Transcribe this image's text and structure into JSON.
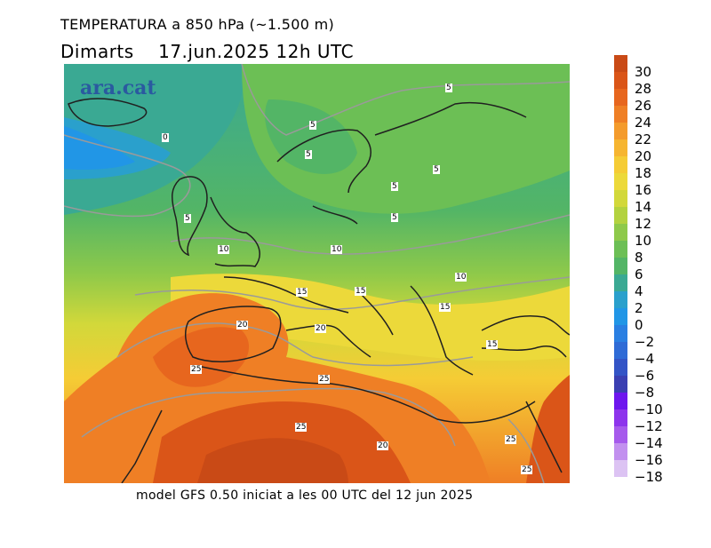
{
  "header": {
    "title": "TEMPERATURA a 850 hPa (~1.500 m)",
    "subtitle": "Dimarts    17.jun.2025 12h UTC"
  },
  "map": {
    "logo": "ara.cat",
    "contour_labels": [
      "5",
      "5",
      "5",
      "5",
      "5",
      "5",
      "5",
      "0",
      "10",
      "10",
      "10",
      "15",
      "15",
      "15",
      "15",
      "20",
      "20",
      "20",
      "25",
      "25",
      "25",
      "25",
      "25"
    ]
  },
  "footer": {
    "model_note": "model GFS 0.50 iniciat a les 00 UTC del 12 jun 2025"
  },
  "legend": {
    "labels": [
      "30",
      "28",
      "26",
      "24",
      "22",
      "20",
      "18",
      "16",
      "14",
      "12",
      "10",
      "8",
      "6",
      "4",
      "2",
      "0",
      "−2",
      "−4",
      "−6",
      "−8",
      "−10",
      "−12",
      "−14",
      "−16",
      "−18"
    ],
    "colors": [
      "#c94a16",
      "#da5518",
      "#e7661e",
      "#ef7f25",
      "#f49b2c",
      "#f6b530",
      "#f5cc35",
      "#ecd93a",
      "#d2d83a",
      "#b3d23f",
      "#8ec94a",
      "#6cbf55",
      "#53b566",
      "#3aa993",
      "#2aa0cc",
      "#2196e6",
      "#2a7fe2",
      "#2f6bd6",
      "#3354c6",
      "#3a3fb2",
      "#6d16ee",
      "#8d34ec",
      "#a65aec",
      "#c290ef",
      "#dcc3f3"
    ]
  }
}
